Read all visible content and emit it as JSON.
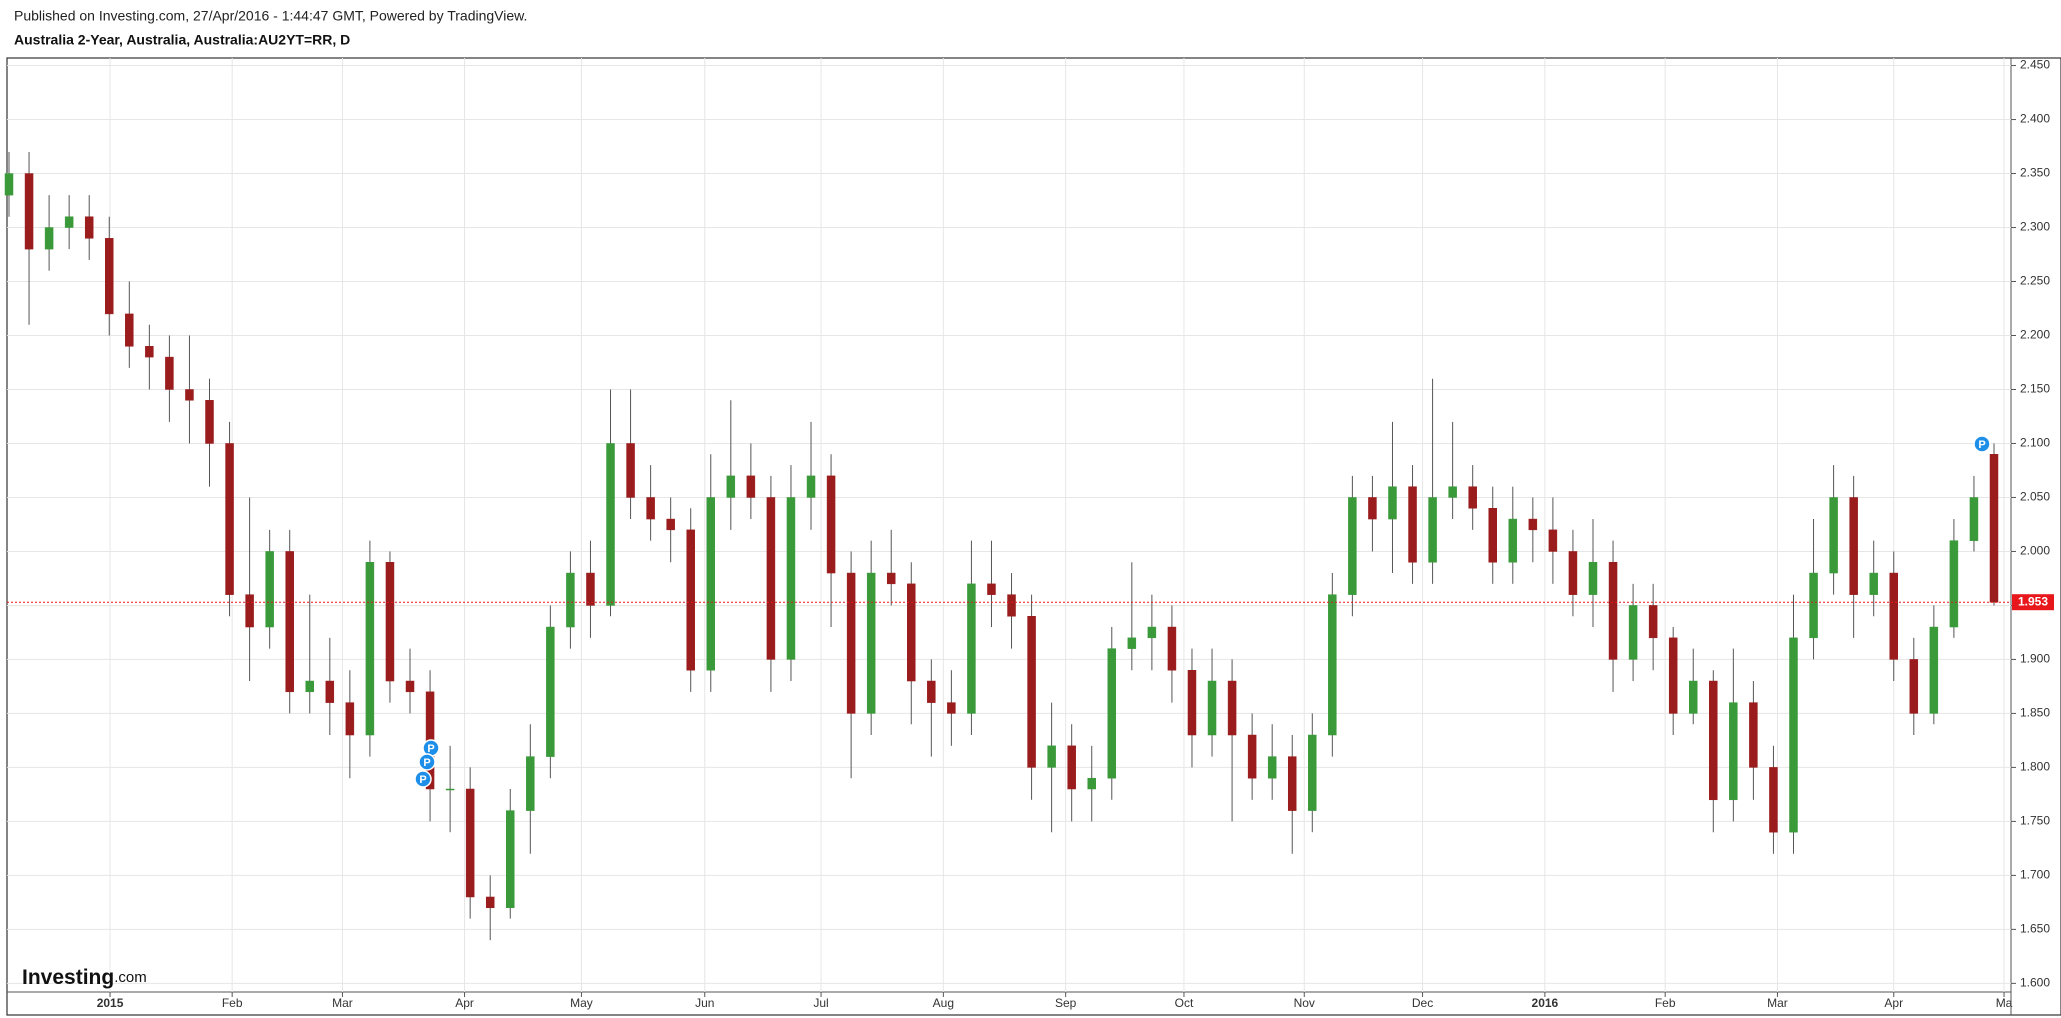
{
  "header": {
    "published": "Published on Investing.com, 27/Apr/2016 - 1:44:47 GMT, Powered by TradingView.",
    "title": "Australia 2-Year, Australia, Australia:AU2YT=RR, D"
  },
  "logo": {
    "main": "Investing",
    "suffix": ".com"
  },
  "chart_data": {
    "type": "candlestick",
    "open": [
      2.33,
      2.35,
      2.28,
      2.3,
      2.31,
      2.29,
      2.22,
      2.19,
      2.18,
      2.15,
      2.14,
      2.1,
      1.96,
      1.93,
      2.0,
      1.87,
      1.88,
      1.86,
      1.83,
      1.99,
      1.88,
      1.87,
      1.78,
      1.78,
      1.68,
      1.67,
      1.76,
      1.81,
      1.93,
      1.98,
      1.95,
      2.1,
      2.05,
      2.03,
      2.02,
      1.89,
      2.05,
      2.07,
      2.05,
      1.9,
      2.05,
      2.07,
      1.98,
      1.85,
      1.98,
      1.97,
      1.88,
      1.86,
      1.85,
      1.97,
      1.96,
      1.94,
      1.8,
      1.82,
      1.78,
      1.79,
      1.91,
      1.92,
      1.93,
      1.89,
      1.83,
      1.88,
      1.83,
      1.79,
      1.81,
      1.76,
      1.83,
      1.96,
      2.05,
      2.03,
      2.06,
      1.99,
      2.05,
      2.06,
      2.04,
      1.99,
      2.03,
      2.02,
      2.0,
      1.96,
      1.99,
      1.9,
      1.95,
      1.92,
      1.85,
      1.88,
      1.77,
      1.86,
      1.8,
      1.74,
      1.92,
      1.98,
      2.05,
      1.96,
      1.98,
      1.9,
      1.85,
      1.93,
      2.01,
      2.09
    ],
    "high": [
      2.37,
      2.37,
      2.33,
      2.33,
      2.33,
      2.31,
      2.25,
      2.21,
      2.2,
      2.2,
      2.16,
      2.12,
      2.05,
      2.02,
      2.02,
      1.96,
      1.92,
      1.89,
      2.01,
      2.0,
      1.91,
      1.89,
      1.82,
      1.8,
      1.7,
      1.78,
      1.84,
      1.95,
      2.0,
      2.01,
      2.15,
      2.15,
      2.08,
      2.05,
      2.04,
      2.09,
      2.14,
      2.1,
      2.07,
      2.08,
      2.12,
      2.09,
      2.0,
      2.01,
      2.02,
      1.99,
      1.9,
      1.89,
      2.01,
      2.01,
      1.98,
      1.96,
      1.86,
      1.84,
      1.82,
      1.93,
      1.99,
      1.96,
      1.95,
      1.91,
      1.91,
      1.9,
      1.85,
      1.84,
      1.83,
      1.85,
      1.98,
      2.07,
      2.07,
      2.12,
      2.08,
      2.16,
      2.12,
      2.08,
      2.06,
      2.06,
      2.05,
      2.05,
      2.02,
      2.03,
      2.01,
      1.97,
      1.97,
      1.93,
      1.91,
      1.89,
      1.91,
      1.88,
      1.82,
      1.96,
      2.03,
      2.08,
      2.07,
      2.01,
      2.0,
      1.92,
      1.95,
      2.03,
      2.07,
      2.1
    ],
    "low": [
      2.31,
      2.21,
      2.26,
      2.28,
      2.27,
      2.2,
      2.17,
      2.15,
      2.12,
      2.1,
      2.06,
      1.94,
      1.88,
      1.91,
      1.85,
      1.85,
      1.83,
      1.79,
      1.81,
      1.86,
      1.85,
      1.75,
      1.74,
      1.66,
      1.64,
      1.66,
      1.72,
      1.79,
      1.91,
      1.92,
      1.94,
      2.03,
      2.01,
      1.99,
      1.87,
      1.87,
      2.02,
      2.03,
      1.87,
      1.88,
      2.02,
      1.93,
      1.79,
      1.83,
      1.95,
      1.84,
      1.81,
      1.82,
      1.83,
      1.93,
      1.91,
      1.77,
      1.74,
      1.75,
      1.75,
      1.77,
      1.89,
      1.89,
      1.86,
      1.8,
      1.81,
      1.75,
      1.77,
      1.77,
      1.72,
      1.74,
      1.81,
      1.94,
      2.0,
      1.98,
      1.97,
      1.97,
      2.03,
      2.02,
      1.97,
      1.97,
      1.99,
      1.97,
      1.94,
      1.93,
      1.87,
      1.88,
      1.89,
      1.83,
      1.84,
      1.74,
      1.75,
      1.77,
      1.72,
      1.72,
      1.9,
      1.96,
      1.92,
      1.94,
      1.88,
      1.83,
      1.84,
      1.92,
      2.0,
      1.95
    ],
    "close": [
      2.35,
      2.28,
      2.3,
      2.31,
      2.29,
      2.22,
      2.19,
      2.18,
      2.15,
      2.14,
      2.1,
      1.96,
      1.93,
      2.0,
      1.87,
      1.88,
      1.86,
      1.83,
      1.99,
      1.88,
      1.87,
      1.78,
      1.78,
      1.68,
      1.67,
      1.76,
      1.81,
      1.93,
      1.98,
      1.95,
      2.1,
      2.05,
      2.03,
      2.02,
      1.89,
      2.05,
      2.07,
      2.05,
      1.9,
      2.05,
      2.07,
      1.98,
      1.85,
      1.98,
      1.97,
      1.88,
      1.86,
      1.85,
      1.97,
      1.96,
      1.94,
      1.8,
      1.82,
      1.78,
      1.79,
      1.91,
      1.92,
      1.93,
      1.89,
      1.83,
      1.88,
      1.83,
      1.79,
      1.81,
      1.76,
      1.83,
      1.96,
      2.05,
      2.03,
      2.06,
      1.99,
      2.05,
      2.06,
      2.04,
      1.99,
      2.03,
      2.02,
      2.0,
      1.96,
      1.99,
      1.9,
      1.95,
      1.92,
      1.85,
      1.88,
      1.77,
      1.86,
      1.8,
      1.74,
      1.92,
      1.98,
      2.05,
      1.96,
      1.98,
      1.9,
      1.85,
      1.93,
      2.01,
      2.05,
      1.953
    ],
    "up_color": "#3a9a3a",
    "down_color": "#9a1c1c",
    "last_price": 1.953,
    "last_price_color": "#e8171c",
    "pins": [
      "P",
      "P",
      "P",
      "P"
    ],
    "pin_color": "#1e8fe8",
    "ylim": [
      1.592,
      2.457
    ],
    "yticks": [
      {
        "value": 1.6,
        "label": "1.600"
      },
      {
        "value": 1.65,
        "label": "1.650"
      },
      {
        "value": 1.7,
        "label": "1.700"
      },
      {
        "value": 1.75,
        "label": "1.750"
      },
      {
        "value": 1.8,
        "label": "1.800"
      },
      {
        "value": 1.85,
        "label": "1.850"
      },
      {
        "value": 1.9,
        "label": "1.900"
      },
      {
        "value": 1.95,
        "label": "1.950"
      },
      {
        "value": 2.0,
        "label": "2.000"
      },
      {
        "value": 2.05,
        "label": "2.050"
      },
      {
        "value": 2.1,
        "label": "2.100"
      },
      {
        "value": 2.15,
        "label": "2.150"
      },
      {
        "value": 2.2,
        "label": "2.200"
      },
      {
        "value": 2.25,
        "label": "2.250"
      },
      {
        "value": 2.3,
        "label": "2.300"
      },
      {
        "value": 2.35,
        "label": "2.350"
      },
      {
        "value": 2.4,
        "label": "2.400"
      },
      {
        "value": 2.45,
        "label": "2.450"
      }
    ],
    "xticks": [
      {
        "value": 5.04,
        "label": "2015"
      },
      {
        "value": 11.13,
        "label": "Feb"
      },
      {
        "value": 16.63,
        "label": "Mar"
      },
      {
        "value": 22.72,
        "label": "Apr"
      },
      {
        "value": 28.55,
        "label": "May"
      },
      {
        "value": 34.7,
        "label": "Jun"
      },
      {
        "value": 40.5,
        "label": "Jul"
      },
      {
        "value": 46.6,
        "label": "Aug"
      },
      {
        "value": 52.7,
        "label": "Sep"
      },
      {
        "value": 58.6,
        "label": "Oct"
      },
      {
        "value": 64.6,
        "label": "Nov"
      },
      {
        "value": 70.5,
        "label": "Dec"
      },
      {
        "value": 76.6,
        "label": "2016"
      },
      {
        "value": 82.6,
        "label": "Feb"
      },
      {
        "value": 88.2,
        "label": "Mar"
      },
      {
        "value": 94.0,
        "label": "Apr"
      },
      {
        "value": 99.5,
        "label": "Ma"
      }
    ],
    "grid": true
  }
}
